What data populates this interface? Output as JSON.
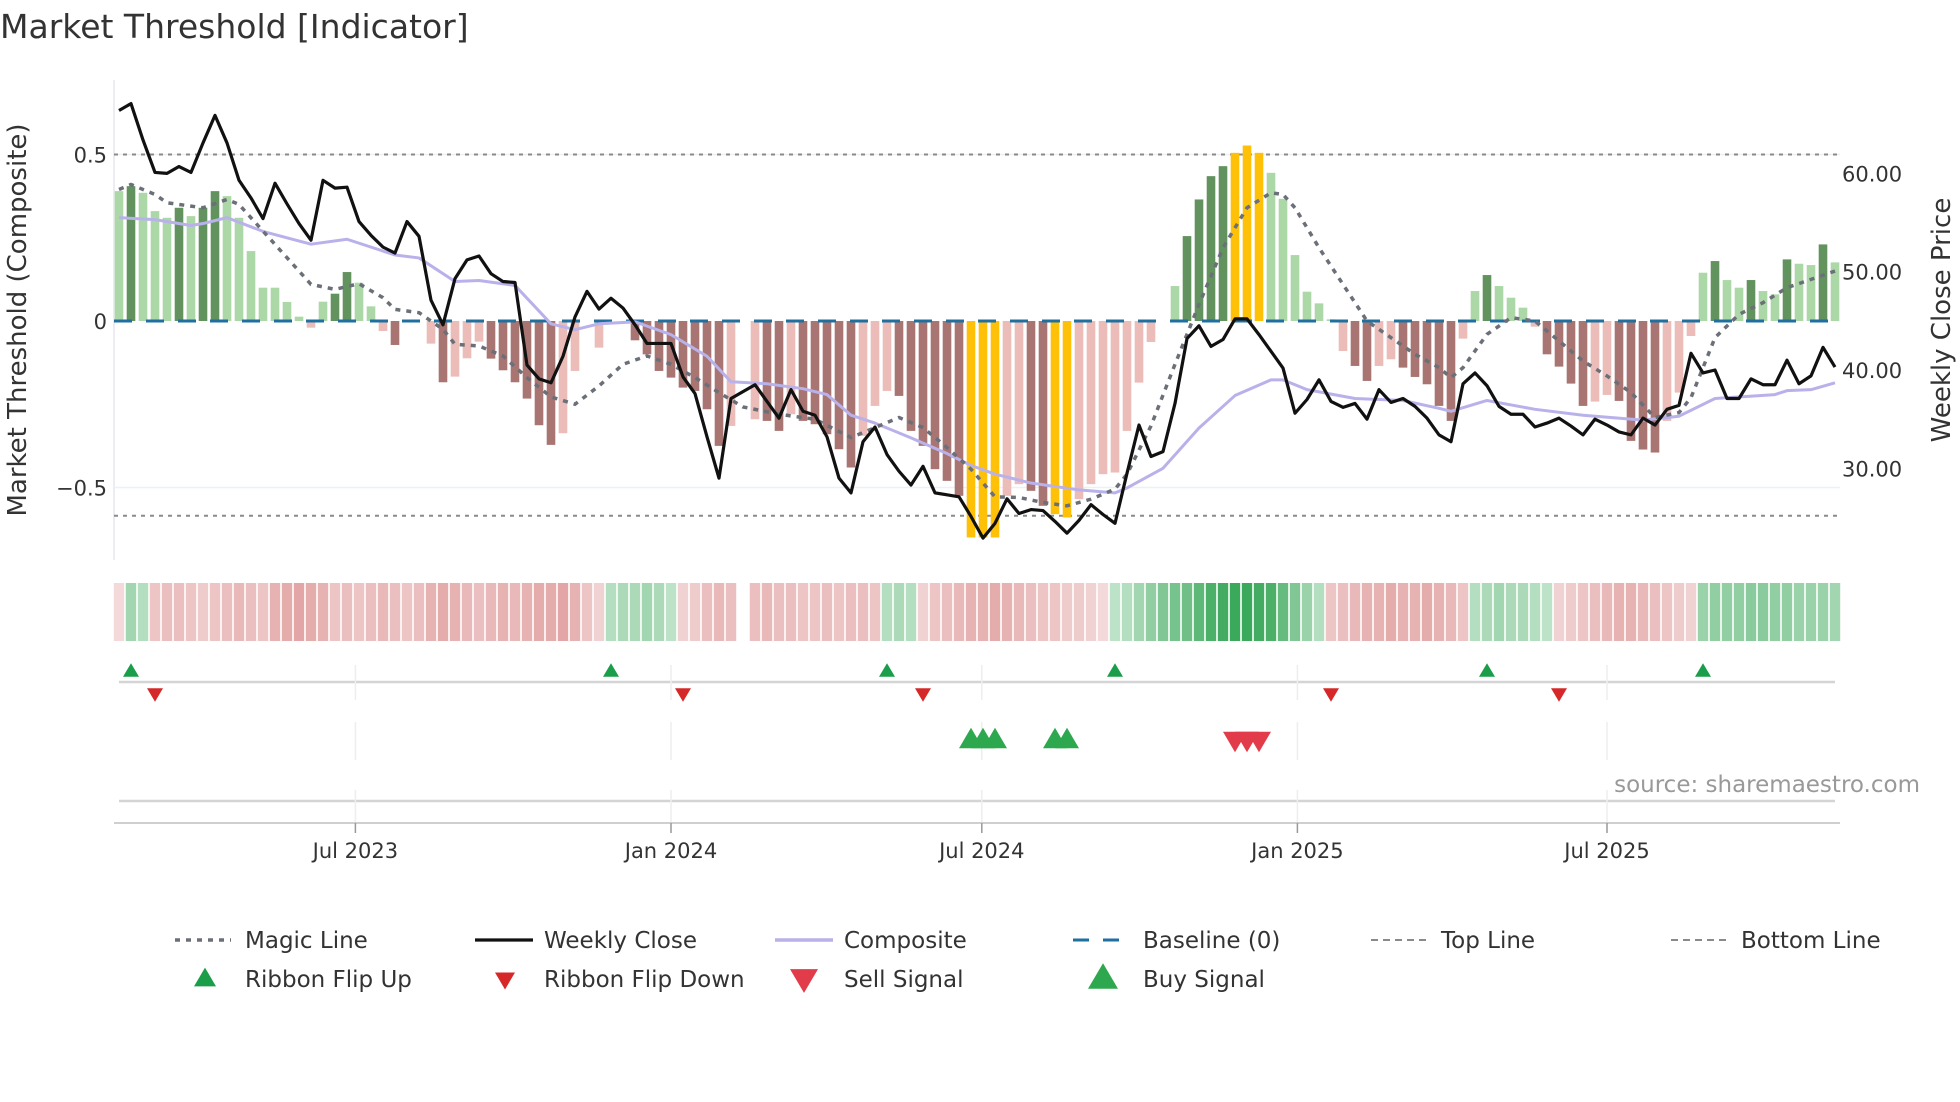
{
  "title": "Market Threshold [Indicator]",
  "source": "source: sharemaestro.com",
  "chart_data": {
    "type": "bar+line",
    "title": "Market Threshold [Indicator]",
    "ylabel_left": "Market Threshold (Composite)",
    "ylabel_right": "Weekly Close Price",
    "left_ticks": [
      {
        "v": 0.5,
        "label": "0.5"
      },
      {
        "v": 0,
        "label": "0"
      },
      {
        "v": -0.5,
        "label": "−0.5"
      }
    ],
    "right_ticks": [
      {
        "v": 60,
        "label": "60.00"
      },
      {
        "v": 50,
        "label": "50.00"
      },
      {
        "v": 40,
        "label": "40.00"
      },
      {
        "v": 30,
        "label": "30.00"
      }
    ],
    "x_ticks": [
      {
        "week": 20.7,
        "label": "Jul 2023"
      },
      {
        "week": 47.0,
        "label": "Jan 2024"
      },
      {
        "week": 72.9,
        "label": "Jul 2024"
      },
      {
        "week": 99.2,
        "label": "Jan 2025"
      },
      {
        "week": 125.0,
        "label": "Jul 2025"
      }
    ],
    "top_line": 0.5,
    "bottom_line": -0.585,
    "baseline": 0,
    "colors": {
      "dg": "#62935f",
      "lg": "#acd8a7",
      "dr": "#a87572",
      "lr": "#ebbcb8",
      "y": "#ffc107",
      "close": "#111111",
      "composite": "#b9b1ea",
      "magic": "#6b6f78",
      "baseline": "#1f6f9f",
      "up": "#1a9e4a",
      "down": "#d62828",
      "buy": "#2ea84f",
      "sell": "#e23b4a"
    },
    "composite_bars": [
      [
        0.39,
        "lg"
      ],
      [
        0.405,
        "dg"
      ],
      [
        0.385,
        "lg"
      ],
      [
        0.33,
        "lg"
      ],
      [
        0.31,
        "lg"
      ],
      [
        0.34,
        "dg"
      ],
      [
        0.315,
        "lg"
      ],
      [
        0.34,
        "dg"
      ],
      [
        0.39,
        "dg"
      ],
      [
        0.375,
        "lg"
      ],
      [
        0.31,
        "lg"
      ],
      [
        0.21,
        "lg"
      ],
      [
        0.1,
        "lg"
      ],
      [
        0.1,
        "lg"
      ],
      [
        0.057,
        "lg"
      ],
      [
        0.013,
        "lg"
      ],
      [
        -0.02,
        "lr"
      ],
      [
        0.058,
        "lg"
      ],
      [
        0.082,
        "dg"
      ],
      [
        0.147,
        "dg"
      ],
      [
        0.115,
        "lg"
      ],
      [
        0.044,
        "lg"
      ],
      [
        -0.03,
        "lr"
      ],
      [
        -0.072,
        "dr"
      ],
      [
        0,
        "lr"
      ],
      [
        0,
        "lr"
      ],
      [
        -0.068,
        "lr"
      ],
      [
        -0.184,
        "dr"
      ],
      [
        -0.167,
        "lr"
      ],
      [
        -0.112,
        "lr"
      ],
      [
        -0.062,
        "lr"
      ],
      [
        -0.113,
        "dr"
      ],
      [
        -0.148,
        "dr"
      ],
      [
        -0.184,
        "dr"
      ],
      [
        -0.233,
        "dr"
      ],
      [
        -0.313,
        "dr"
      ],
      [
        -0.372,
        "dr"
      ],
      [
        -0.337,
        "lr"
      ],
      [
        -0.15,
        "lr"
      ],
      [
        0,
        "lr"
      ],
      [
        -0.08,
        "lr"
      ],
      [
        0,
        "lr"
      ],
      [
        0,
        "lr"
      ],
      [
        -0.058,
        "dr"
      ],
      [
        -0.1,
        "dr"
      ],
      [
        -0.15,
        "dr"
      ],
      [
        -0.17,
        "dr"
      ],
      [
        -0.2,
        "dr"
      ],
      [
        -0.21,
        "dr"
      ],
      [
        -0.265,
        "dr"
      ],
      [
        -0.375,
        "dr"
      ],
      [
        -0.315,
        "lr"
      ],
      [
        null,
        "lr"
      ],
      [
        -0.295,
        "lr"
      ],
      [
        -0.3,
        "dr"
      ],
      [
        -0.33,
        "dr"
      ],
      [
        -0.28,
        "lr"
      ],
      [
        -0.3,
        "dr"
      ],
      [
        -0.31,
        "dr"
      ],
      [
        -0.34,
        "dr"
      ],
      [
        -0.385,
        "dr"
      ],
      [
        -0.44,
        "dr"
      ],
      [
        -0.345,
        "lr"
      ],
      [
        -0.255,
        "lr"
      ],
      [
        -0.21,
        "lr"
      ],
      [
        -0.225,
        "dr"
      ],
      [
        -0.33,
        "dr"
      ],
      [
        -0.375,
        "dr"
      ],
      [
        -0.445,
        "dr"
      ],
      [
        -0.48,
        "dr"
      ],
      [
        -0.525,
        "dr"
      ],
      [
        -0.65,
        "y"
      ],
      [
        -0.65,
        "y"
      ],
      [
        -0.65,
        "y"
      ],
      [
        -0.525,
        "lr"
      ],
      [
        -0.49,
        "lr"
      ],
      [
        -0.51,
        "dr"
      ],
      [
        -0.555,
        "dr"
      ],
      [
        -0.58,
        "y"
      ],
      [
        -0.59,
        "y"
      ],
      [
        -0.535,
        "lr"
      ],
      [
        -0.49,
        "lr"
      ],
      [
        -0.46,
        "lr"
      ],
      [
        -0.455,
        "lr"
      ],
      [
        -0.33,
        "lr"
      ],
      [
        -0.185,
        "lr"
      ],
      [
        -0.063,
        "lr"
      ],
      [
        0,
        "lg"
      ],
      [
        0.105,
        "lg"
      ],
      [
        0.255,
        "dg"
      ],
      [
        0.365,
        "dg"
      ],
      [
        0.435,
        "dg"
      ],
      [
        0.465,
        "dg"
      ],
      [
        0.505,
        "y"
      ],
      [
        0.527,
        "y"
      ],
      [
        0.505,
        "y"
      ],
      [
        0.445,
        "lg"
      ],
      [
        0.367,
        "lg"
      ],
      [
        0.198,
        "lg"
      ],
      [
        0.088,
        "lg"
      ],
      [
        0.053,
        "lg"
      ],
      [
        0.005,
        "lg"
      ],
      [
        -0.09,
        "lr"
      ],
      [
        -0.135,
        "dr"
      ],
      [
        -0.18,
        "dr"
      ],
      [
        -0.135,
        "lr"
      ],
      [
        -0.115,
        "lr"
      ],
      [
        -0.14,
        "dr"
      ],
      [
        -0.168,
        "dr"
      ],
      [
        -0.19,
        "dr"
      ],
      [
        -0.255,
        "dr"
      ],
      [
        -0.3,
        "dr"
      ],
      [
        -0.053,
        "lr"
      ],
      [
        0.09,
        "lg"
      ],
      [
        0.138,
        "dg"
      ],
      [
        0.105,
        "lg"
      ],
      [
        0.07,
        "lg"
      ],
      [
        0.04,
        "lg"
      ],
      [
        -0.017,
        "lr"
      ],
      [
        -0.1,
        "dr"
      ],
      [
        -0.137,
        "dr"
      ],
      [
        -0.188,
        "dr"
      ],
      [
        -0.255,
        "dr"
      ],
      [
        -0.242,
        "lr"
      ],
      [
        -0.222,
        "lr"
      ],
      [
        -0.24,
        "dr"
      ],
      [
        -0.36,
        "dr"
      ],
      [
        -0.386,
        "dr"
      ],
      [
        -0.395,
        "dr"
      ],
      [
        -0.3,
        "lr"
      ],
      [
        -0.215,
        "lr"
      ],
      [
        -0.045,
        "lr"
      ],
      [
        0.145,
        "lg"
      ],
      [
        0.18,
        "dg"
      ],
      [
        0.123,
        "lg"
      ],
      [
        0.1,
        "lg"
      ],
      [
        0.123,
        "dg"
      ],
      [
        0.09,
        "lg"
      ],
      [
        0.08,
        "lg"
      ],
      [
        0.185,
        "dg"
      ],
      [
        0.172,
        "lg"
      ],
      [
        0.168,
        "lg"
      ],
      [
        0.23,
        "dg"
      ],
      [
        0.176,
        "lg"
      ]
    ],
    "weekly_close": [
      66.4,
      67.1,
      63.4,
      60.1,
      60.0,
      60.7,
      60.1,
      63.1,
      65.9,
      63.1,
      59.3,
      57.5,
      55.4,
      59.0,
      56.9,
      54.9,
      53.2,
      59.3,
      58.5,
      58.6,
      55.1,
      53.7,
      52.5,
      51.9,
      55.1,
      53.6,
      47.1,
      44.6,
      49.3,
      51.2,
      51.6,
      49.8,
      49.0,
      48.9,
      40.5,
      39.1,
      38.7,
      41.4,
      45.4,
      48.0,
      46.2,
      47.3,
      46.3,
      44.6,
      42.7,
      42.7,
      42.7,
      39.3,
      37.6,
      33.2,
      29.0,
      37.1,
      37.8,
      38.5,
      36.8,
      35.1,
      38.0,
      35.8,
      35.4,
      33.2,
      29.0,
      27.5,
      32.7,
      34.2,
      31.4,
      29.7,
      28.3,
      30.2,
      27.5,
      27.3,
      27.1,
      25.1,
      22.9,
      24.4,
      26.9,
      25.4,
      25.8,
      25.7,
      24.6,
      23.4,
      24.7,
      26.3,
      25.3,
      24.4,
      29.5,
      34.4,
      31.2,
      31.7,
      36.6,
      43.2,
      44.5,
      42.4,
      43.1,
      45.2,
      45.2,
      43.6,
      41.9,
      40.2,
      35.6,
      37.0,
      39.0,
      36.8,
      36.2,
      36.6,
      35.0,
      38.0,
      36.7,
      37.1,
      36.3,
      35.1,
      33.4,
      32.7,
      38.6,
      39.7,
      38.4,
      36.3,
      35.5,
      35.5,
      34.2,
      34.6,
      35.1,
      34.3,
      33.4,
      35.0,
      34.4,
      33.7,
      33.4,
      35.1,
      34.4,
      36.0,
      36.4,
      41.7,
      39.7,
      40.0,
      37.1,
      37.1,
      39.1,
      38.5,
      38.5,
      41.0,
      38.6,
      39.4,
      42.3,
      40.3
    ],
    "composite_line": [
      [
        1,
        55.5
      ],
      [
        4,
        55.3
      ],
      [
        7,
        54.7
      ],
      [
        8,
        54.9
      ],
      [
        10,
        55.5
      ],
      [
        13,
        54.1
      ],
      [
        17,
        52.8
      ],
      [
        20,
        53.3
      ],
      [
        24,
        51.7
      ],
      [
        26,
        51.4
      ],
      [
        29,
        49.0
      ],
      [
        31,
        49.1
      ],
      [
        34,
        48.6
      ],
      [
        37,
        44.7
      ],
      [
        39,
        44.1
      ],
      [
        41,
        44.7
      ],
      [
        44,
        44.9
      ],
      [
        47,
        43.6
      ],
      [
        50,
        41.4
      ],
      [
        52,
        38.8
      ],
      [
        55,
        38.6
      ],
      [
        58,
        38.1
      ],
      [
        60,
        37.5
      ],
      [
        62,
        35.4
      ],
      [
        64,
        34.6
      ],
      [
        67,
        33.1
      ],
      [
        70,
        31.5
      ],
      [
        72,
        30.3
      ],
      [
        74,
        29.4
      ],
      [
        77,
        28.5
      ],
      [
        81,
        27.8
      ],
      [
        84,
        27.5
      ],
      [
        85,
        28.0
      ],
      [
        88,
        30.0
      ],
      [
        91,
        34.1
      ],
      [
        94,
        37.4
      ],
      [
        97,
        39.0
      ],
      [
        98,
        39.0
      ],
      [
        100,
        38.0
      ],
      [
        104,
        37.1
      ],
      [
        108,
        36.9
      ],
      [
        111,
        36.1
      ],
      [
        112,
        35.8
      ],
      [
        115,
        36.9
      ],
      [
        119,
        36.0
      ],
      [
        123,
        35.4
      ],
      [
        128,
        34.9
      ],
      [
        131,
        35.3
      ],
      [
        134,
        37.1
      ],
      [
        139,
        37.5
      ],
      [
        140,
        37.9
      ],
      [
        142,
        38.0
      ],
      [
        144,
        38.7
      ]
    ],
    "magic_line": [
      [
        1,
        0.395
      ],
      [
        2,
        0.41
      ],
      [
        4,
        0.38
      ],
      [
        5,
        0.355
      ],
      [
        7,
        0.345
      ],
      [
        8,
        0.34
      ],
      [
        10,
        0.365
      ],
      [
        11,
        0.35
      ],
      [
        13,
        0.27
      ],
      [
        15,
        0.19
      ],
      [
        17,
        0.11
      ],
      [
        19,
        0.095
      ],
      [
        21,
        0.112
      ],
      [
        23,
        0.07
      ],
      [
        24,
        0.035
      ],
      [
        26,
        0.025
      ],
      [
        28,
        -0.025
      ],
      [
        29,
        -0.07
      ],
      [
        31,
        -0.075
      ],
      [
        33,
        -0.105
      ],
      [
        35,
        -0.17
      ],
      [
        37,
        -0.228
      ],
      [
        39,
        -0.25
      ],
      [
        41,
        -0.195
      ],
      [
        43,
        -0.13
      ],
      [
        45,
        -0.105
      ],
      [
        47,
        -0.13
      ],
      [
        49,
        -0.17
      ],
      [
        51,
        -0.215
      ],
      [
        53,
        -0.258
      ],
      [
        56,
        -0.28
      ],
      [
        59,
        -0.295
      ],
      [
        62,
        -0.35
      ],
      [
        64,
        -0.32
      ],
      [
        66,
        -0.29
      ],
      [
        68,
        -0.32
      ],
      [
        70,
        -0.38
      ],
      [
        72,
        -0.445
      ],
      [
        74,
        -0.528
      ],
      [
        76,
        -0.53
      ],
      [
        78,
        -0.545
      ],
      [
        80,
        -0.555
      ],
      [
        82,
        -0.535
      ],
      [
        84,
        -0.505
      ],
      [
        85,
        -0.46
      ],
      [
        87,
        -0.315
      ],
      [
        89,
        -0.13
      ],
      [
        91,
        0.05
      ],
      [
        93,
        0.22
      ],
      [
        95,
        0.34
      ],
      [
        97,
        0.385
      ],
      [
        98,
        0.38
      ],
      [
        99,
        0.34
      ],
      [
        101,
        0.22
      ],
      [
        103,
        0.11
      ],
      [
        105,
        0
      ],
      [
        107,
        -0.05
      ],
      [
        109,
        -0.1
      ],
      [
        111,
        -0.14
      ],
      [
        112,
        -0.17
      ],
      [
        113,
        -0.14
      ],
      [
        115,
        -0.04
      ],
      [
        117,
        0.01
      ],
      [
        119,
        0
      ],
      [
        121,
        -0.06
      ],
      [
        123,
        -0.12
      ],
      [
        125,
        -0.165
      ],
      [
        127,
        -0.215
      ],
      [
        129,
        -0.29
      ],
      [
        131,
        -0.275
      ],
      [
        132,
        -0.23
      ],
      [
        134,
        -0.05
      ],
      [
        136,
        0.02
      ],
      [
        138,
        0.055
      ],
      [
        140,
        0.1
      ],
      [
        142,
        0.125
      ],
      [
        144,
        0.15
      ]
    ],
    "ribbon": [
      -0.15,
      0.35,
      0.25,
      -0.3,
      -0.35,
      -0.35,
      -0.3,
      -0.25,
      -0.3,
      -0.35,
      -0.4,
      -0.35,
      -0.3,
      -0.45,
      -0.5,
      -0.55,
      -0.5,
      -0.45,
      -0.3,
      -0.35,
      -0.3,
      -0.35,
      -0.4,
      -0.35,
      -0.3,
      -0.35,
      -0.45,
      -0.5,
      -0.45,
      -0.4,
      -0.35,
      -0.4,
      -0.45,
      -0.4,
      -0.45,
      -0.5,
      -0.5,
      -0.55,
      -0.45,
      -0.3,
      -0.2,
      0.25,
      0.3,
      0.3,
      0.35,
      0.3,
      0.2,
      -0.2,
      -0.25,
      -0.35,
      -0.4,
      -0.35,
      null,
      -0.35,
      -0.4,
      -0.35,
      -0.35,
      -0.3,
      -0.3,
      -0.35,
      -0.3,
      -0.35,
      -0.35,
      -0.3,
      0.25,
      0.3,
      0.25,
      -0.2,
      -0.3,
      -0.35,
      -0.4,
      -0.45,
      -0.45,
      -0.5,
      -0.45,
      -0.4,
      -0.35,
      -0.3,
      -0.3,
      -0.25,
      -0.25,
      -0.2,
      -0.15,
      0.2,
      0.25,
      0.35,
      0.45,
      0.55,
      0.6,
      0.65,
      0.75,
      0.85,
      0.9,
      0.95,
      0.95,
      0.9,
      0.85,
      0.7,
      0.55,
      0.4,
      0.25,
      -0.3,
      -0.35,
      -0.4,
      -0.45,
      -0.45,
      -0.5,
      -0.45,
      -0.45,
      -0.5,
      -0.45,
      -0.4,
      -0.3,
      0.25,
      0.3,
      0.35,
      0.3,
      0.3,
      0.25,
      0.2,
      -0.2,
      -0.25,
      -0.3,
      -0.35,
      -0.4,
      -0.45,
      -0.45,
      -0.4,
      -0.35,
      -0.3,
      -0.25,
      -0.2,
      0.4,
      0.45,
      0.45,
      0.45,
      0.5,
      0.5,
      0.45,
      0.45,
      0.4,
      0.4,
      0.4,
      0.35
    ],
    "ribbon_flip_up_weeks": [
      2,
      42,
      65,
      84,
      115,
      133
    ],
    "ribbon_flip_down_weeks": [
      4,
      48,
      68,
      102,
      121
    ],
    "buy_signal_weeks": [
      72,
      73,
      74,
      79,
      80
    ],
    "sell_signal_weeks": [
      94,
      95,
      96
    ],
    "legend": [
      {
        "label": "Magic Line",
        "kind": "dotted"
      },
      {
        "label": "Weekly Close",
        "kind": "solid"
      },
      {
        "label": "Composite",
        "kind": "lavender"
      },
      {
        "label": "Baseline (0)",
        "kind": "dashed-blue"
      },
      {
        "label": "Top Line",
        "kind": "dashed-gray"
      },
      {
        "label": "Bottom Line",
        "kind": "dashed-gray"
      },
      {
        "label": "Ribbon Flip Up",
        "kind": "up"
      },
      {
        "label": "Ribbon Flip Down",
        "kind": "down"
      },
      {
        "label": "Sell Signal",
        "kind": "sell"
      },
      {
        "label": "Buy Signal",
        "kind": "buy"
      }
    ]
  }
}
